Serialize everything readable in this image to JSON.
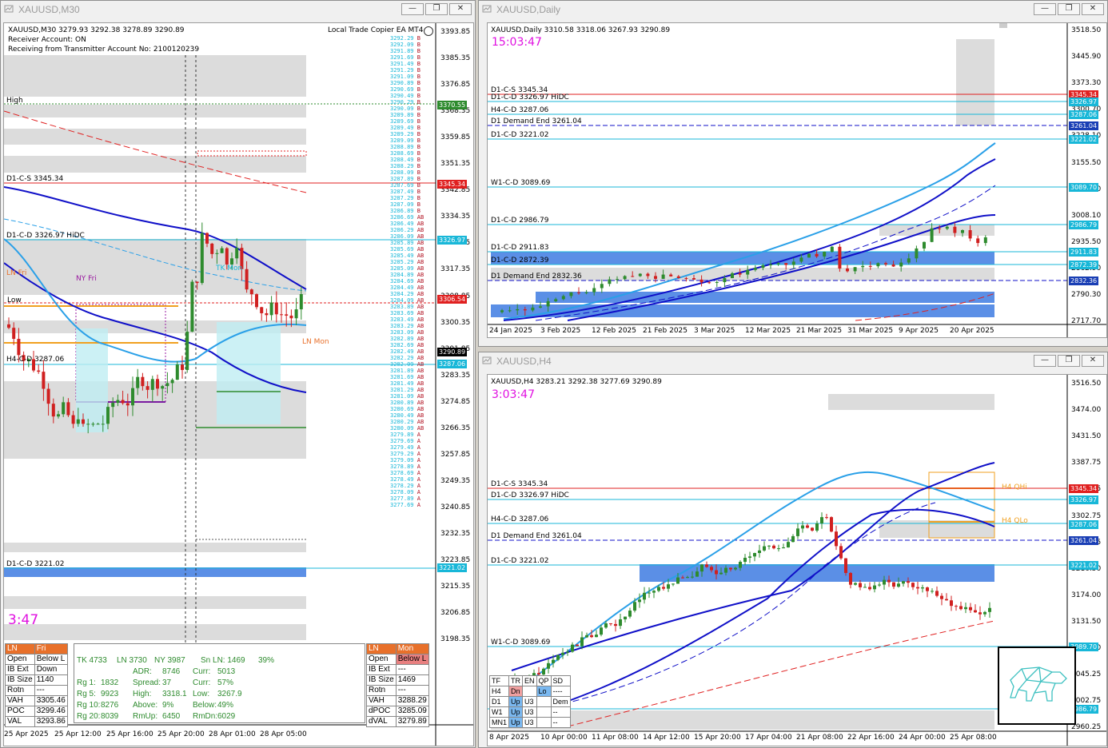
{
  "windows": {
    "m30": {
      "title": "XAUUSD,M30",
      "header": "XAUUSD,M30  3279.93 3292.38 3278.89 3290.89",
      "copier": "Local Trade Copier EA MT4",
      "receiver": "Receiver Account: ON",
      "receiving": "Receiving from Transmitter Account No: 2100120239",
      "timer": "3:47",
      "high_label": "High",
      "lines": {
        "d1cs": "D1-C-S 3345.34",
        "d1cd": "D1-C-D 3326.97 HiDC",
        "h4cd": "H4-C-D 3287.06",
        "d1cd2": "D1-C-D 3221.02"
      },
      "tags": {
        "nyfri": "NY Fri",
        "tkmon": "TK Mon",
        "lnmon": "LN Mon",
        "low": "Low",
        "lnfri": "LN Fri"
      },
      "price_axis": [
        "3393.85",
        "3385.35",
        "3376.85",
        "3368.35",
        "3359.85",
        "3351.35",
        "3342.85",
        "3334.35",
        "3325.85",
        "3317.35",
        "3308.85",
        "3300.35",
        "3291.85",
        "3283.35",
        "3274.85",
        "3266.35",
        "3257.85",
        "3249.35",
        "3240.85",
        "3232.35",
        "3223.85",
        "3215.35",
        "3206.85",
        "3198.35"
      ],
      "price_tags": [
        {
          "text": "3370.55",
          "color": "#2e8b2e"
        },
        {
          "text": "3345.34",
          "color": "#e02020"
        },
        {
          "text": "3326.97",
          "color": "#18b7d8"
        },
        {
          "text": "3306.54",
          "color": "#e02020"
        },
        {
          "text": "3290.89",
          "color": "#000000"
        },
        {
          "text": "3287.06",
          "color": "#18b7d8"
        },
        {
          "text": "3221.02",
          "color": "#18b7d8"
        }
      ],
      "time_axis": [
        "25 Apr 2025",
        "25 Apr 12:00",
        "25 Apr 16:00",
        "25 Apr 20:00",
        "28 Apr 01:00",
        "28 Apr 05:00"
      ],
      "ladder": [
        "3292.29",
        "3292.09",
        "3291.89",
        "3291.69",
        "3291.49",
        "3291.29",
        "3291.09",
        "3290.89",
        "3290.69",
        "3290.49",
        "3290.29",
        "3290.09",
        "3289.89",
        "3289.69",
        "3289.49",
        "3289.29",
        "3289.09",
        "3288.89",
        "3288.69",
        "3288.49",
        "3288.29",
        "3288.09",
        "3287.89",
        "3287.69",
        "3287.49",
        "3287.29",
        "3287.09",
        "3286.89",
        "3286.69",
        "3286.49",
        "3286.29",
        "3286.09",
        "3285.89",
        "3285.69",
        "3285.49",
        "3285.29",
        "3285.09",
        "3284.89",
        "3284.69",
        "3284.49",
        "3284.29",
        "3284.09",
        "3283.89",
        "3283.69",
        "3283.49",
        "3283.29",
        "3283.09",
        "3282.89",
        "3282.69",
        "3282.49",
        "3282.29",
        "3282.09",
        "3281.89",
        "3281.69",
        "3281.49",
        "3281.29",
        "3281.09",
        "3280.89",
        "3280.69",
        "3280.49",
        "3280.29",
        "3280.09",
        "3279.89",
        "3279.69",
        "3279.49",
        "3279.29",
        "3279.09",
        "3278.89",
        "3278.69",
        "3278.49",
        "3278.29",
        "3278.09",
        "3277.89",
        "3277.69"
      ],
      "session_left": {
        "head": [
          "LN",
          "Fri"
        ],
        "rows": [
          [
            "Open",
            "Below L"
          ],
          [
            "IB Ext",
            "Down"
          ],
          [
            "IB Size",
            "1140"
          ],
          [
            "Rotn",
            "---"
          ],
          [
            "VAH",
            "3305.46"
          ],
          [
            "POC",
            "3299.46"
          ],
          [
            "VAL",
            "3293.86"
          ]
        ]
      },
      "session_right": {
        "head": [
          "LN",
          "Mon"
        ],
        "rows": [
          [
            "Open",
            "Below L"
          ],
          [
            "IB Ext",
            "---"
          ],
          [
            "IB Size",
            "1469"
          ],
          [
            "Rotn",
            "---"
          ],
          [
            "VAH",
            "3288.29"
          ],
          [
            "dPOC",
            "3285.09"
          ],
          [
            "dVAL",
            "3279.89"
          ]
        ]
      },
      "stats": {
        "row1": [
          "TK 4733",
          "LN  3730",
          "NY 3987",
          "Sn LN:  1469",
          "39%"
        ],
        "adr": [
          "ADR:",
          "8746",
          "Curr:",
          "5013"
        ],
        "rg1": [
          "Rg  1:",
          "1832",
          "Spread:",
          "37",
          "Curr:",
          "57%"
        ],
        "rg5": [
          "Rg  5:",
          "9923",
          "High:",
          "3318.1",
          "Low:",
          "3267.9"
        ],
        "rg10": [
          "Rg 10:",
          "8276",
          "Above:",
          "9%",
          "Below:",
          "49%"
        ],
        "rg20": [
          "Rg 20:",
          "8039",
          "RmUp:",
          "6450",
          "RmDn:",
          "6029"
        ]
      }
    },
    "daily": {
      "title": "XAUUSD,Daily",
      "header": "XAUUSD,Daily  3310.58 3318.06 3267.93 3290.89",
      "timer": "15:03:47",
      "lines": [
        {
          "text": "D1-C-S 3345.34"
        },
        {
          "text": "D1-C-D 3326.97 HiDC"
        },
        {
          "text": "H4-C-D 3287.06"
        },
        {
          "text": "D1 Demand End 3261.04"
        },
        {
          "text": "D1-C-D 3221.02"
        },
        {
          "text": "W1-C-D 3089.69"
        },
        {
          "text": "D1-C-D 2986.79"
        },
        {
          "text": "D1-C-D 2911.83"
        },
        {
          "text": "D1-C-D 2872.39"
        },
        {
          "text": "D1 Demand End 2832.36"
        }
      ],
      "price_axis": [
        "3518.50",
        "3445.90",
        "3373.30",
        "3300.70",
        "3228.10",
        "3155.50",
        "3082.90",
        "3008.10",
        "2935.50",
        "2862.90",
        "2790.30",
        "2717.70"
      ],
      "price_tags": [
        {
          "text": "3345.34",
          "color": "#e02020"
        },
        {
          "text": "3326.97",
          "color": "#18b7d8"
        },
        {
          "text": "3287.06",
          "color": "#18b7d8"
        },
        {
          "text": "3261.04",
          "color": "#1a3fb5"
        },
        {
          "text": "3221.02",
          "color": "#18b7d8"
        },
        {
          "text": "3089.70",
          "color": "#18b7d8"
        },
        {
          "text": "2986.79",
          "color": "#18b7d8"
        },
        {
          "text": "2911.83",
          "color": "#18b7d8"
        },
        {
          "text": "2872.39",
          "color": "#18b7d8"
        },
        {
          "text": "2832.36",
          "color": "#1a3fb5"
        }
      ],
      "time_axis": [
        "24 Jan 2025",
        "3 Feb 2025",
        "12 Feb 2025",
        "21 Feb 2025",
        "3 Mar 2025",
        "12 Mar 2025",
        "21 Mar 2025",
        "31 Mar 2025",
        "9 Apr 2025",
        "20 Apr 2025"
      ]
    },
    "h4": {
      "title": "XAUUSD,H4",
      "header": "XAUUSD,H4  3283.21 3292.38 3277.69 3290.89",
      "timer": "3:03:47",
      "lines": [
        {
          "text": "D1-C-S 3345.34"
        },
        {
          "text": "D1-C-D 3326.97 HiDC"
        },
        {
          "text": "H4-C-D 3287.06"
        },
        {
          "text": "D1 Demand End 3261.04"
        },
        {
          "text": "D1-C-D 3221.02"
        },
        {
          "text": "W1-C-D 3089.69"
        }
      ],
      "tags": {
        "h4qhi": "H4 QHi",
        "h4qlo": "H4 QLo"
      },
      "price_axis": [
        "3516.50",
        "3474.00",
        "3431.50",
        "3387.75",
        "3345.25",
        "3302.75",
        "3260.25",
        "3216.50",
        "3174.00",
        "3131.50",
        "3089.00",
        "3045.25",
        "3002.75",
        "2960.25"
      ],
      "price_tags": [
        {
          "text": "3345.34",
          "color": "#e02020"
        },
        {
          "text": "3326.97",
          "color": "#18b7d8"
        },
        {
          "text": "3287.06",
          "color": "#18b7d8"
        },
        {
          "text": "3261.04",
          "color": "#1a3fb5"
        },
        {
          "text": "3221.02",
          "color": "#18b7d8"
        },
        {
          "text": "3089.70",
          "color": "#18b7d8"
        },
        {
          "text": "2986.79",
          "color": "#18b7d8"
        }
      ],
      "time_axis": [
        "8 Apr 2025",
        "10 Apr 00:00",
        "11 Apr 08:00",
        "14 Apr 12:00",
        "15 Apr 20:00",
        "17 Apr 04:00",
        "21 Apr 08:00",
        "22 Apr 16:00",
        "24 Apr 00:00",
        "25 Apr 08:00"
      ],
      "trend_table": {
        "head": [
          "TF",
          "TR",
          "EN",
          "QP",
          "SD"
        ],
        "rows": [
          [
            "H4",
            "Dn",
            "",
            "Lo",
            "----"
          ],
          [
            "D1",
            "Up",
            "U3",
            "",
            "Dem"
          ],
          [
            "W1",
            "Up",
            "U3",
            "",
            "--"
          ],
          [
            "MN1",
            "Up",
            "U3",
            "",
            "--"
          ]
        ]
      }
    }
  },
  "colors": {
    "bull": "#2e8b2e",
    "bear": "#d02020",
    "supply": "#e02020",
    "demand": "#18b7d8",
    "zone_gray": "#dcdcdc",
    "zone_blue": "#5b8fe6",
    "ma_dark": "#1010c8",
    "ma_light": "#2aa0e8",
    "ma_red": "#e02020",
    "timer": "#e010e0",
    "session_head": "#e8702a"
  }
}
